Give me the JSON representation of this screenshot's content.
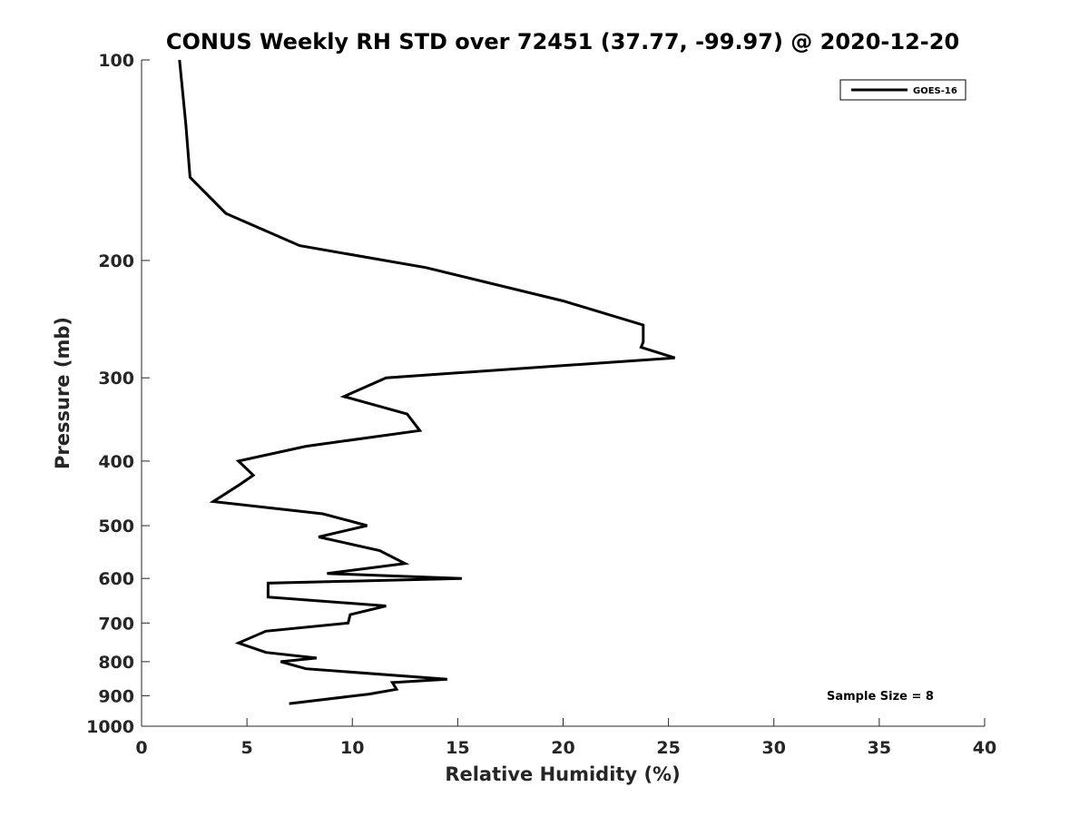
{
  "chart_data": {
    "type": "line",
    "title": "CONUS Weekly RH STD over 72451 (37.77, -99.97) @ 2020-12-20",
    "xlabel": "Relative Humidity (%)",
    "ylabel": "Pressure (mb)",
    "xlim": [
      0,
      40
    ],
    "ylim": [
      100,
      1000
    ],
    "yscale": "log",
    "y_reversed": true,
    "x_ticks": [
      0,
      5,
      10,
      15,
      20,
      25,
      30,
      35,
      40
    ],
    "x_tick_labels": [
      "0",
      "5",
      "10",
      "15",
      "20",
      "25",
      "30",
      "35",
      "40"
    ],
    "y_ticks": [
      100,
      200,
      300,
      400,
      500,
      600,
      700,
      800,
      900,
      1000
    ],
    "y_tick_labels": [
      "100",
      "200",
      "300",
      "400",
      "500",
      "600",
      "700",
      "800",
      "900",
      "1000"
    ],
    "grid": false,
    "legend_position": "top-right",
    "series": [
      {
        "name": "GOES-16",
        "color": "#000000",
        "x": [
          1.8,
          2.1,
          2.3,
          4.0,
          7.5,
          13.5,
          20.0,
          23.8,
          23.8,
          23.7,
          25.3,
          11.6,
          9.6,
          12.6,
          13.2,
          7.8,
          4.6,
          5.3,
          4.6,
          3.4,
          8.6,
          10.7,
          8.4,
          11.3,
          12.5,
          8.8,
          15.2,
          6.0,
          6.0,
          11.6,
          9.9,
          9.8,
          5.9,
          4.6,
          5.9,
          8.3,
          6.6,
          7.8,
          14.5,
          11.9,
          12.1,
          10.8,
          7.0
        ],
        "y": [
          100,
          125,
          150,
          170,
          190,
          205,
          230,
          250,
          265,
          270,
          280,
          300,
          320,
          340,
          360,
          380,
          400,
          420,
          435,
          460,
          480,
          500,
          520,
          545,
          570,
          590,
          600,
          610,
          640,
          660,
          680,
          700,
          720,
          750,
          775,
          790,
          800,
          820,
          850,
          860,
          880,
          895,
          925
        ]
      }
    ],
    "annotation": "Sample Size = 8"
  }
}
